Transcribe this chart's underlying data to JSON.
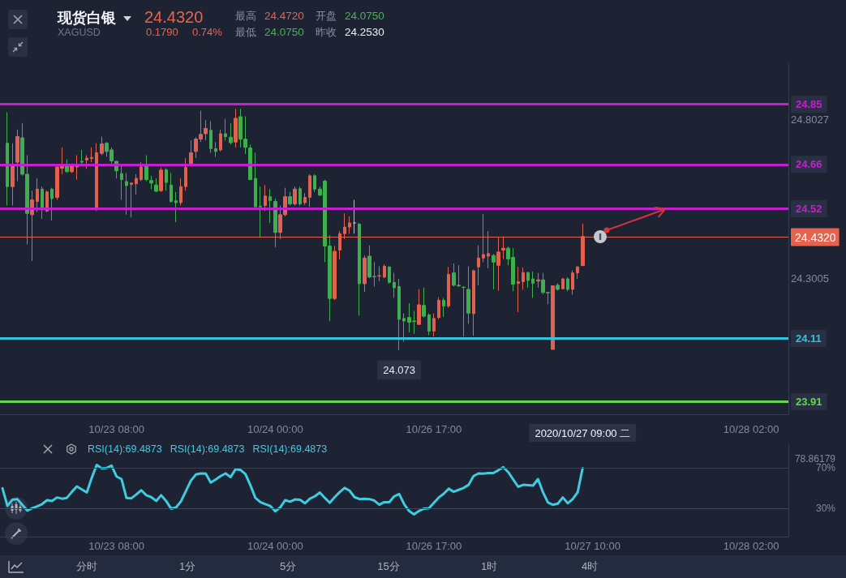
{
  "chart_data": [
    {
      "type": "candlestick",
      "title": "现货白银",
      "subtitle": "XAGUSD",
      "categories": [
        null,
        null,
        null,
        null,
        null,
        null,
        null,
        null,
        null,
        null,
        null,
        null,
        null,
        null,
        null,
        null,
        null,
        null,
        null,
        null,
        null,
        null,
        null,
        "10/23 08:00",
        null,
        null,
        null,
        null,
        null,
        null,
        null,
        null,
        null,
        null,
        null,
        null,
        null,
        null,
        null,
        null,
        null,
        null,
        null,
        null,
        null,
        null,
        null,
        null,
        null,
        null,
        null,
        null,
        null,
        null,
        null,
        "10/24 00:00",
        null,
        null,
        null,
        null,
        null,
        null,
        null,
        null,
        null,
        null,
        null,
        null,
        null,
        null,
        null,
        null,
        null,
        null,
        null,
        null,
        null,
        null,
        null,
        null,
        null,
        null,
        null,
        null,
        null,
        null,
        null,
        "10/26 17:00",
        null,
        null,
        null,
        null,
        null,
        null,
        null,
        null,
        null,
        null,
        null,
        null,
        null,
        null,
        null,
        null,
        null,
        null,
        null,
        null,
        null,
        null,
        null,
        null,
        null,
        null,
        null,
        null,
        null,
        "2020/10/27 09:00 二",
        null,
        null,
        null,
        null,
        null,
        null,
        null,
        null,
        null,
        null,
        null,
        null,
        null,
        null,
        null,
        null,
        null,
        null,
        null,
        null,
        null,
        null,
        null,
        null,
        null,
        null,
        null,
        null,
        null,
        null,
        null,
        null,
        null,
        "10/28 02:00",
        null,
        null,
        null,
        null,
        null,
        null,
        null
      ],
      "ohlc": [
        null,
        [
          24.727,
          24.825,
          24.53,
          24.59
        ],
        [
          24.59,
          24.727,
          24.53,
          24.659
        ],
        [
          24.667,
          24.77,
          24.607,
          24.748
        ],
        [
          24.744,
          24.791,
          24.624,
          24.629
        ],
        [
          24.629,
          24.689,
          24.407,
          24.505
        ],
        [
          24.501,
          24.577,
          24.355,
          24.548
        ],
        [
          24.543,
          24.616,
          24.509,
          24.582
        ],
        [
          24.582,
          24.59,
          24.488,
          24.522
        ],
        [
          24.513,
          24.577,
          24.509,
          24.573
        ],
        [
          24.582,
          24.586,
          24.483,
          24.552
        ],
        [
          24.556,
          24.654,
          24.548,
          24.652
        ],
        [
          24.648,
          24.714,
          24.629,
          24.654
        ],
        [
          24.654,
          24.676,
          24.633,
          24.637
        ],
        [
          24.637,
          24.663,
          24.633,
          24.659
        ],
        [
          24.652,
          24.689,
          24.612,
          24.659
        ],
        [
          24.67,
          24.706,
          24.654,
          24.667
        ],
        [
          24.674,
          24.689,
          24.646,
          24.68
        ],
        [
          24.679,
          24.714,
          24.667,
          24.682
        ],
        [
          24.518,
          24.727,
          24.513,
          24.697
        ],
        [
          24.695,
          24.748,
          24.689,
          24.725
        ],
        [
          24.727,
          24.731,
          24.684,
          24.701
        ],
        [
          24.706,
          24.714,
          24.663,
          24.671
        ],
        [
          24.67,
          24.671,
          24.616,
          24.64
        ],
        [
          24.631,
          24.659,
          24.548,
          24.612
        ],
        [
          24.606,
          24.633,
          24.501,
          24.593
        ],
        [
          24.597,
          24.603,
          24.492,
          24.601
        ],
        [
          24.599,
          24.629,
          24.565,
          24.616
        ],
        [
          24.612,
          24.667,
          24.607,
          24.652
        ],
        [
          24.654,
          24.689,
          24.607,
          24.612
        ],
        [
          24.609,
          24.624,
          24.582,
          24.601
        ],
        [
          24.595,
          24.616,
          24.573,
          24.575
        ],
        [
          24.577,
          24.65,
          24.573,
          24.642
        ],
        [
          24.643,
          24.648,
          24.577,
          24.603
        ],
        [
          24.595,
          24.633,
          24.539,
          24.543
        ],
        [
          24.545,
          24.573,
          24.477,
          24.539
        ],
        [
          24.539,
          24.616,
          24.53,
          24.59
        ],
        [
          24.59,
          24.68,
          24.577,
          24.65
        ],
        [
          24.663,
          24.736,
          24.659,
          24.697
        ],
        [
          24.701,
          24.746,
          24.68,
          24.74
        ],
        [
          24.74,
          24.83,
          24.731,
          24.755
        ],
        [
          24.757,
          24.8,
          24.736,
          24.774
        ],
        [
          24.768,
          24.797,
          24.697,
          24.71
        ],
        [
          24.71,
          24.731,
          24.684,
          24.701
        ],
        [
          24.706,
          24.77,
          24.701,
          24.757
        ],
        [
          24.757,
          24.804,
          24.736,
          24.748
        ],
        [
          24.746,
          24.791,
          24.723,
          24.729
        ],
        [
          24.731,
          24.836,
          24.714,
          24.806
        ],
        [
          24.811,
          24.836,
          24.714,
          24.74
        ],
        [
          24.74,
          24.812,
          24.693,
          24.714
        ],
        [
          24.712,
          24.723,
          24.612,
          24.612
        ],
        [
          24.616,
          24.697,
          24.526,
          24.526
        ],
        [
          24.528,
          24.59,
          24.428,
          24.526
        ],
        [
          24.53,
          24.595,
          24.513,
          24.56
        ],
        [
          24.558,
          24.582,
          24.475,
          24.546
        ],
        [
          24.543,
          24.552,
          24.398,
          24.445
        ],
        [
          24.445,
          24.53,
          24.424,
          24.501
        ],
        [
          24.501,
          24.586,
          24.496,
          24.558
        ],
        [
          24.558,
          24.573,
          24.53,
          24.535
        ],
        [
          24.535,
          24.59,
          24.53,
          24.582
        ],
        [
          24.583,
          24.589,
          24.53,
          24.535
        ],
        [
          24.539,
          24.569,
          24.532,
          24.556
        ],
        [
          24.556,
          24.629,
          24.526,
          24.624
        ],
        [
          24.624,
          24.629,
          24.573,
          24.582
        ],
        [
          24.582,
          24.59,
          24.56,
          24.563
        ],
        [
          24.607,
          24.612,
          24.351,
          24.402
        ],
        [
          24.402,
          24.436,
          24.165,
          24.236
        ],
        [
          24.236,
          24.402,
          24.231,
          24.385
        ],
        [
          24.389,
          24.449,
          24.36,
          24.441
        ],
        [
          24.441,
          24.505,
          24.424,
          24.462
        ],
        [
          24.462,
          24.496,
          24.441,
          24.475
        ],
        [
          24.475,
          24.548,
          24.441,
          24.475
        ],
        [
          24.471,
          24.475,
          24.182,
          24.283
        ],
        [
          24.283,
          24.372,
          24.257,
          24.364
        ],
        [
          24.37,
          24.404,
          24.3,
          24.304
        ],
        [
          24.306,
          24.351,
          24.274,
          24.305
        ],
        [
          24.307,
          24.338,
          24.291,
          24.308
        ],
        [
          24.304,
          24.344,
          24.3,
          24.338
        ],
        [
          24.336,
          24.338,
          24.283,
          24.287
        ],
        [
          24.287,
          24.317,
          24.238,
          24.27
        ],
        [
          24.274,
          24.298,
          24.073,
          24.17
        ],
        [
          24.173,
          24.189,
          24.099,
          24.165
        ],
        [
          24.176,
          24.221,
          24.129,
          24.161
        ],
        [
          24.165,
          24.197,
          24.124,
          24.163
        ],
        [
          24.154,
          24.265,
          24.153,
          24.216
        ],
        [
          24.214,
          24.27,
          24.176,
          24.18
        ],
        [
          24.184,
          24.189,
          24.12,
          24.133
        ],
        [
          24.133,
          24.189,
          24.116,
          24.173
        ],
        [
          24.176,
          24.24,
          24.171,
          24.23
        ],
        [
          24.23,
          24.238,
          24.178,
          24.212
        ],
        [
          24.212,
          24.336,
          24.207,
          24.312
        ],
        [
          24.317,
          24.347,
          24.274,
          24.278
        ],
        [
          24.278,
          24.341,
          24.272,
          24.276
        ],
        [
          24.272,
          24.274,
          24.116,
          24.271
        ],
        [
          24.265,
          24.338,
          24.156,
          24.19
        ],
        [
          24.188,
          24.327,
          24.118,
          24.324
        ],
        [
          24.336,
          24.404,
          24.278,
          24.364
        ],
        [
          24.364,
          24.503,
          24.351,
          24.375
        ],
        [
          24.37,
          24.449,
          24.332,
          24.378
        ],
        [
          24.372,
          24.377,
          24.265,
          24.351
        ],
        [
          24.341,
          24.428,
          24.261,
          24.383
        ],
        [
          24.389,
          24.432,
          24.361,
          24.395
        ],
        [
          24.395,
          24.4,
          24.341,
          24.361
        ],
        [
          24.366,
          24.395,
          24.259,
          24.281
        ],
        [
          24.284,
          24.336,
          24.193,
          24.289
        ],
        [
          24.289,
          24.334,
          24.264,
          24.318
        ],
        [
          24.318,
          24.321,
          24.27,
          24.293
        ],
        [
          24.298,
          24.321,
          24.238,
          24.284
        ],
        [
          24.291,
          24.317,
          24.27,
          24.295
        ],
        [
          24.295,
          24.317,
          24.25,
          24.255
        ],
        [
          24.255,
          24.257,
          24.218,
          24.254
        ],
        [
          24.075,
          24.276,
          24.075,
          24.276
        ],
        [
          24.278,
          24.284,
          24.261,
          24.265
        ],
        [
          24.267,
          24.301,
          24.264,
          24.298
        ],
        [
          24.298,
          24.303,
          24.259,
          24.265
        ],
        [
          24.265,
          24.325,
          24.248,
          24.317
        ],
        [
          24.317,
          24.338,
          24.298,
          24.336
        ],
        [
          24.34,
          24.472,
          24.34,
          24.432
        ],
        null,
        null,
        null,
        null,
        null,
        null,
        null,
        null,
        null,
        null,
        null,
        null,
        null,
        null,
        null,
        null,
        null,
        null,
        null,
        null,
        null,
        null,
        null,
        null,
        null,
        null,
        null,
        null,
        null,
        null,
        null,
        null,
        null,
        null,
        null,
        null,
        null,
        null,
        null,
        null,
        null
      ],
      "ylim": [
        23.87,
        24.98
      ],
      "yticks": [
        24.8027,
        24.3005
      ],
      "ref_lines": [
        {
          "axis": "y",
          "value": 24.85,
          "label": "24.85",
          "color": "#c81ed2"
        },
        {
          "axis": "y",
          "value": 24.66,
          "label": "24.66",
          "color": "#c81ed2"
        },
        {
          "axis": "y",
          "value": 24.52,
          "label": "24.52",
          "color": "#c81ed2"
        },
        {
          "axis": "y",
          "value": 24.432,
          "label": "24.4320",
          "color": "#e5634e"
        },
        {
          "axis": "y",
          "value": 24.11,
          "label": "24.11",
          "color": "#2ec6de"
        },
        {
          "axis": "y",
          "value": 23.91,
          "label": "23.91",
          "color": "#62d84a"
        }
      ],
      "annotations": [
        "24.4320",
        "0.1790",
        "0.74%",
        "最高",
        "24.4720",
        "开盘",
        "24.0750",
        "最低",
        "24.0750",
        "昨收",
        "24.2530",
        {
          "text": "24.073",
          "y": 24.073
        }
      ]
    },
    {
      "type": "line",
      "color": "#3fcbe0",
      "marker": "none",
      "line_style": "solid",
      "categories": [
        null,
        null,
        null,
        null,
        null,
        null,
        null,
        null,
        null,
        null,
        null,
        null,
        null,
        null,
        null,
        null,
        null,
        null,
        null,
        null,
        null,
        null,
        null,
        "10/23 08:00",
        null,
        null,
        null,
        null,
        null,
        null,
        null,
        null,
        null,
        null,
        null,
        null,
        null,
        null,
        null,
        null,
        null,
        null,
        null,
        null,
        null,
        null,
        null,
        null,
        null,
        null,
        null,
        null,
        null,
        null,
        null,
        "10/24 00:00",
        null,
        null,
        null,
        null,
        null,
        null,
        null,
        null,
        null,
        null,
        null,
        null,
        null,
        null,
        null,
        null,
        null,
        null,
        null,
        null,
        null,
        null,
        null,
        null,
        null,
        null,
        null,
        null,
        null,
        null,
        null,
        "10/26 17:00",
        null,
        null,
        null,
        null,
        null,
        null,
        null,
        null,
        null,
        null,
        null,
        null,
        null,
        null,
        null,
        null,
        null,
        null,
        null,
        null,
        null,
        null,
        null,
        null,
        null,
        null,
        null,
        null,
        null,
        null,
        null,
        "10/27 10:00",
        null,
        null,
        null,
        null,
        null,
        null,
        null,
        null,
        null,
        null,
        null,
        null,
        null,
        null,
        null,
        null,
        null,
        null,
        null,
        null,
        null,
        null,
        null,
        null,
        null,
        null,
        null,
        null,
        null,
        null,
        null,
        "10/28 02:00",
        null,
        null,
        null,
        null,
        null,
        null,
        null
      ],
      "values": [
        49.6,
        32.3,
        38.3,
        39.0,
        33.4,
        27.7,
        30.0,
        31.9,
        34.1,
        37.9,
        37.2,
        40.6,
        39.4,
        40.2,
        46.2,
        51.5,
        48.5,
        45.5,
        59.8,
        72.6,
        69.2,
        69.6,
        71.9,
        61.3,
        58.7,
        40.2,
        39.8,
        43.6,
        47.7,
        42.8,
        40.9,
        37.2,
        42.8,
        37.2,
        29.6,
        30.7,
        36.8,
        47.0,
        57.2,
        63.2,
        64.3,
        64.0,
        55.3,
        58.3,
        61.7,
        64.3,
        60.6,
        68.5,
        67.7,
        63.6,
        52.6,
        40.2,
        36.0,
        34.1,
        32.3,
        27.0,
        30.7,
        37.9,
        36.4,
        38.7,
        38.3,
        34.9,
        39.4,
        41.7,
        45.5,
        40.2,
        35.3,
        40.9,
        45.8,
        50.0,
        47.3,
        40.9,
        39.0,
        39.4,
        39.0,
        37.5,
        33.4,
        36.0,
        36.0,
        41.7,
        44.0,
        34.1,
        27.3,
        23.9,
        27.3,
        29.6,
        30.0,
        35.3,
        40.6,
        44.3,
        49.2,
        46.2,
        48.1,
        50.0,
        53.0,
        61.7,
        64.3,
        64.0,
        64.7,
        64.7,
        67.4,
        70.4,
        65.5,
        58.3,
        51.1,
        53.0,
        52.6,
        52.3,
        58.7,
        45.8,
        35.6,
        33.4,
        34.5,
        40.6,
        34.9,
        39.0,
        45.8,
        69.4873,
        null,
        null,
        null,
        null,
        null,
        null,
        null,
        null,
        null,
        null,
        null,
        null,
        null,
        null,
        null,
        null,
        null,
        null,
        null,
        null,
        null,
        null,
        null,
        null,
        null,
        null,
        null,
        null,
        null,
        null,
        null,
        null,
        null,
        null,
        null,
        null,
        null,
        null,
        null,
        null,
        null
      ],
      "ylim": [
        2,
        93
      ],
      "yticks": [
        {
          "value": 78.86179,
          "label": "78.86179"
        },
        {
          "value": 70,
          "label": "70%"
        },
        {
          "value": 30,
          "label": "30%"
        }
      ],
      "ref_lines": [
        {
          "axis": "y",
          "value": 70,
          "color": "#5a2e3c"
        },
        {
          "axis": "y",
          "value": 30,
          "color": "#2e5440"
        }
      ],
      "annotations": [
        "RSI(14):69.4873",
        "RSI(14):69.4873",
        "RSI(14):69.4873",
        "分时",
        "1分",
        "5分",
        "15分",
        "1时",
        "4时"
      ]
    }
  ]
}
